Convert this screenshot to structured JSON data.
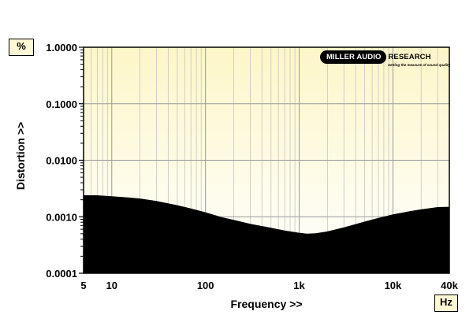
{
  "chart_data": {
    "type": "area",
    "title": "",
    "xlabel": "Frequency >>",
    "ylabel": "Distortion >>",
    "x_unit": "Hz",
    "y_unit": "%",
    "x_scale": "log",
    "y_scale": "log",
    "xlim": [
      5,
      40000
    ],
    "ylim": [
      0.0001,
      1.0
    ],
    "grid": true,
    "x_ticks": [
      {
        "value": 5,
        "label": "5"
      },
      {
        "value": 10,
        "label": "10"
      },
      {
        "value": 100,
        "label": "100"
      },
      {
        "value": 1000,
        "label": "1k"
      },
      {
        "value": 10000,
        "label": "10k"
      },
      {
        "value": 40000,
        "label": "40k"
      }
    ],
    "y_ticks": [
      {
        "value": 1.0,
        "label": "1.0000"
      },
      {
        "value": 0.1,
        "label": "0.1000"
      },
      {
        "value": 0.01,
        "label": "0.0100"
      },
      {
        "value": 0.001,
        "label": "0.0010"
      },
      {
        "value": 0.0001,
        "label": "0.0001"
      }
    ],
    "series": [
      {
        "x": [
          5,
          7,
          10,
          15,
          20,
          30,
          50,
          70,
          100,
          150,
          200,
          300,
          500,
          700,
          1000,
          1200,
          1500,
          2000,
          3000,
          5000,
          7000,
          10000,
          15000,
          20000,
          30000,
          40000
        ],
        "y": [
          0.0024,
          0.0024,
          0.0023,
          0.0022,
          0.0021,
          0.0019,
          0.0016,
          0.0014,
          0.0012,
          0.00098,
          0.00088,
          0.00075,
          0.00064,
          0.00057,
          0.00052,
          0.0005,
          0.00051,
          0.00055,
          0.00065,
          0.00082,
          0.00095,
          0.0011,
          0.00125,
          0.00135,
          0.00148,
          0.0015
        ]
      }
    ]
  },
  "logo": {
    "pill_text": "MILLER AUDIO",
    "rest_text": "RESEARCH",
    "tagline": "Setting the measure of sound quality"
  }
}
